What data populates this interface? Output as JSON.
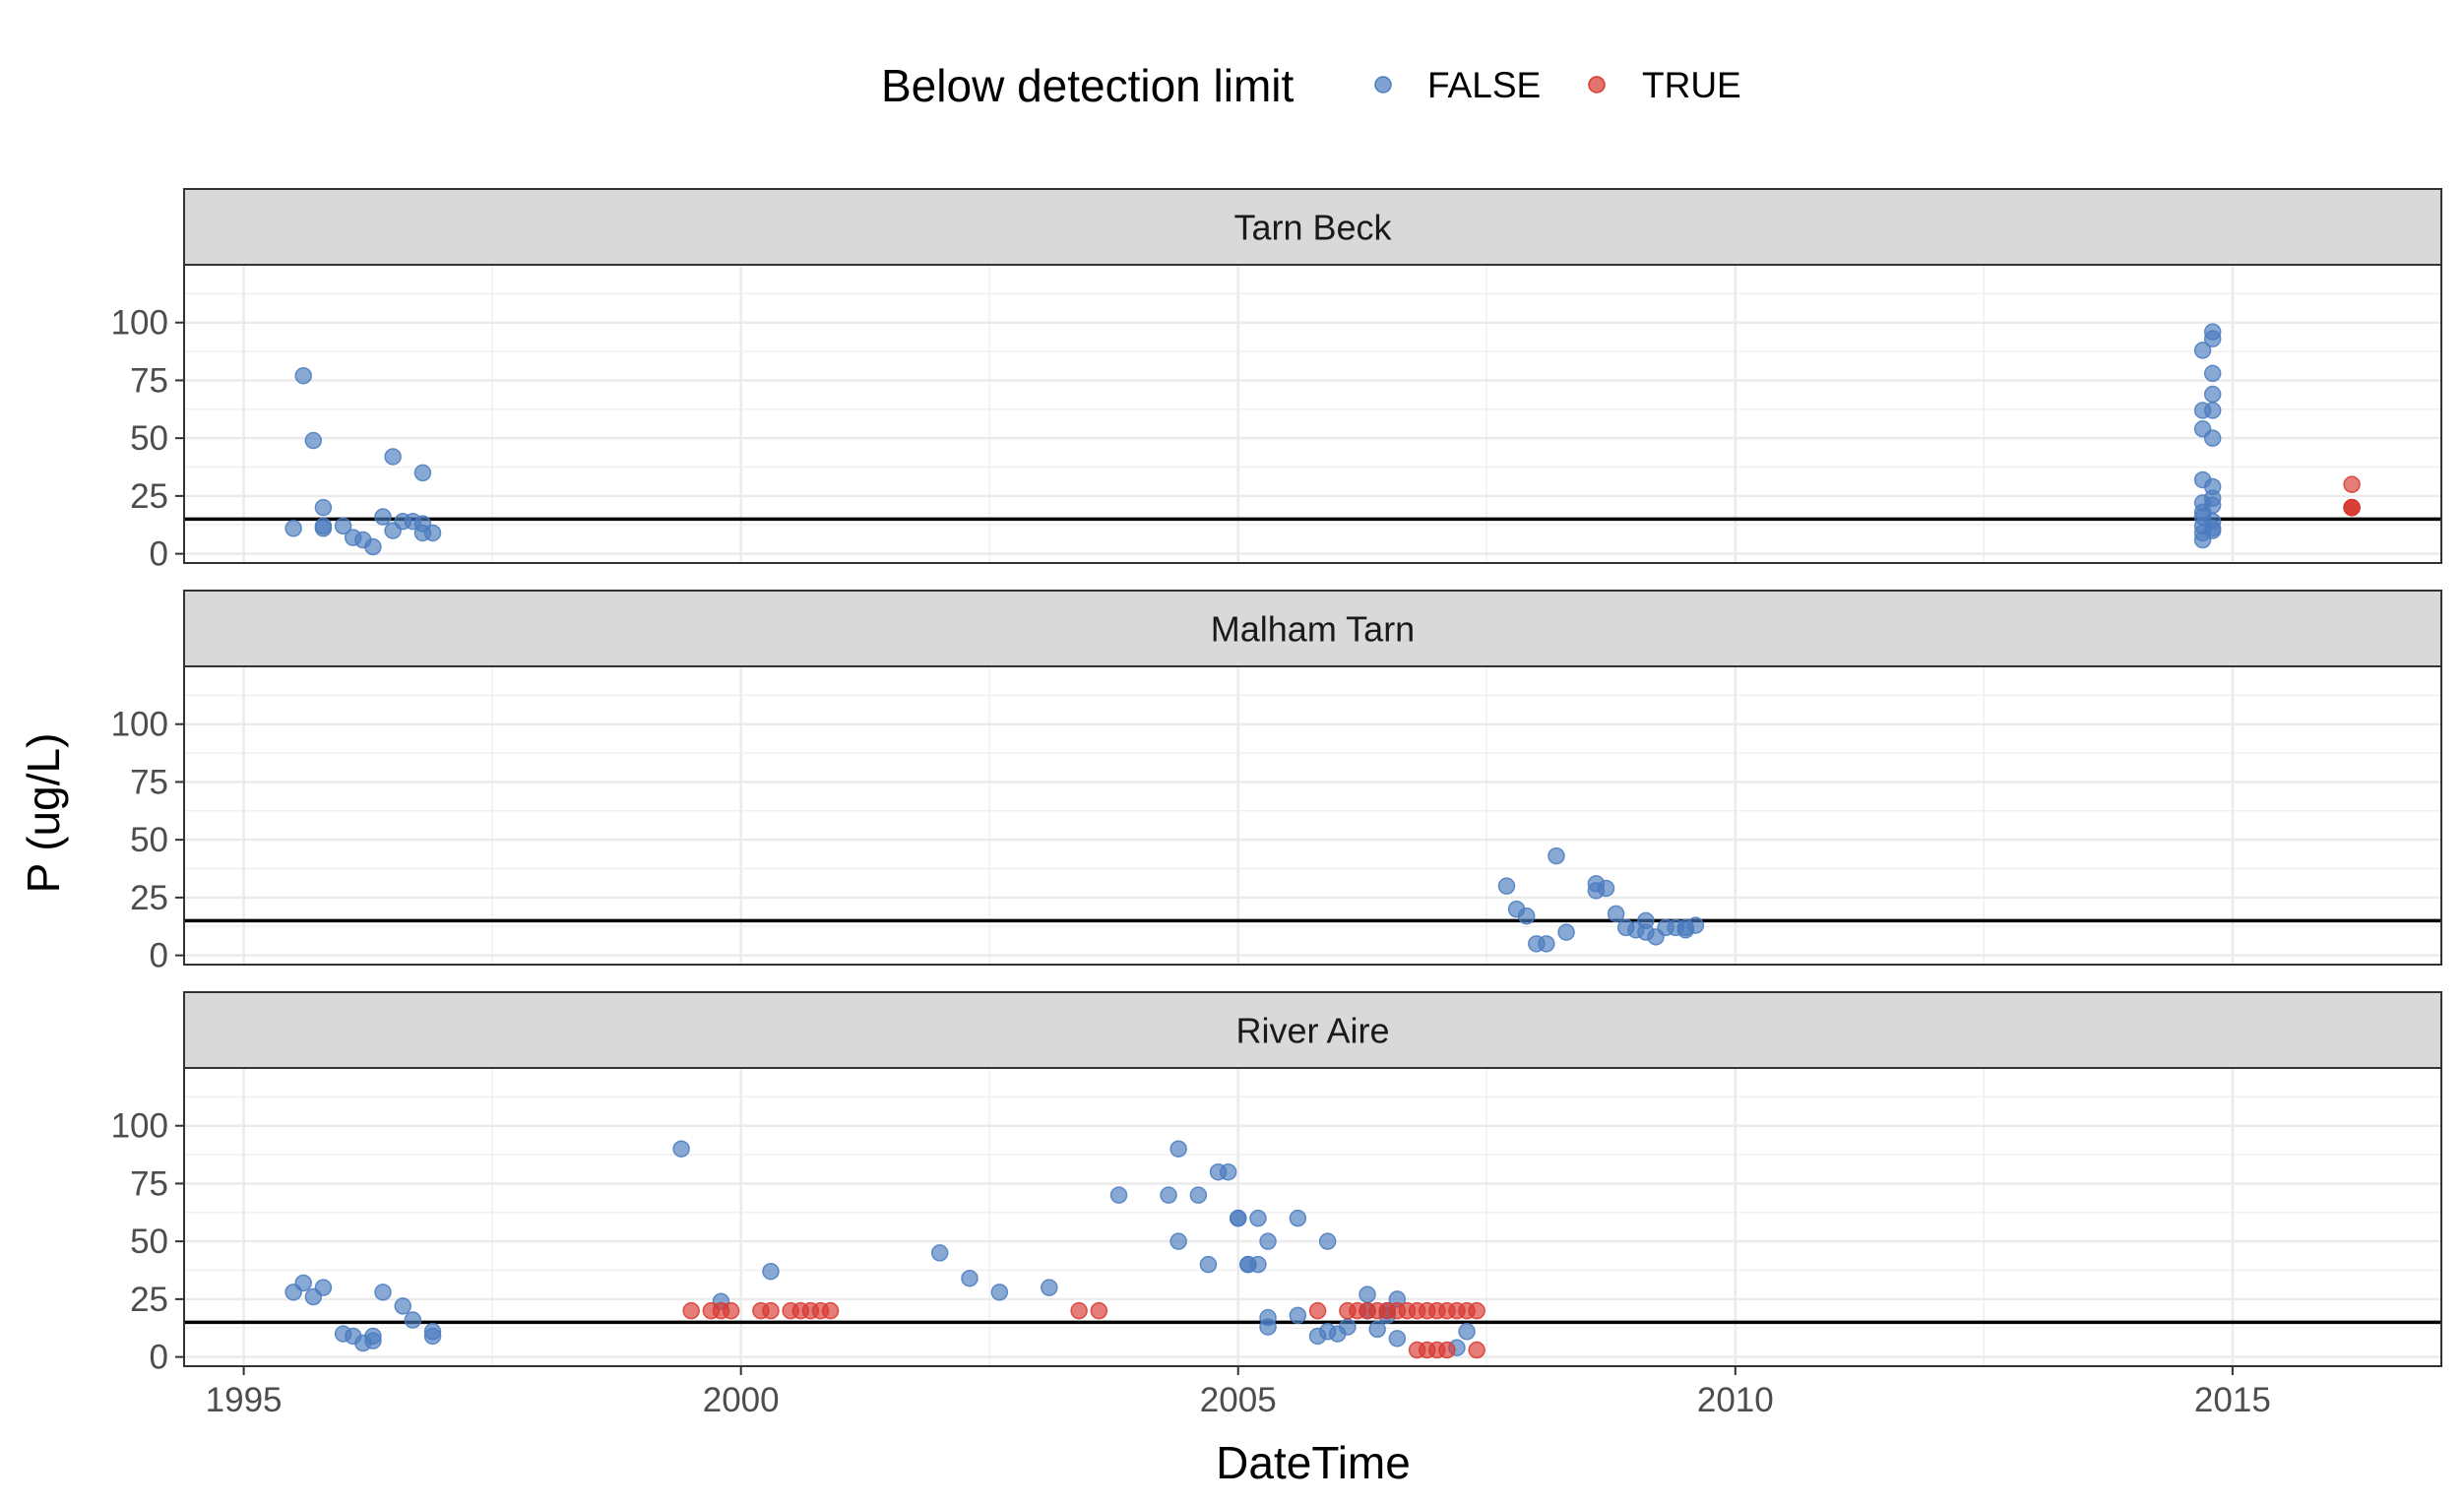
{
  "chart_data": {
    "type": "scatter",
    "xlabel": "DateTime",
    "ylabel": "P (ug/L)",
    "xlim": [
      1994.4,
      2017.1
    ],
    "ylim": [
      -4,
      125
    ],
    "x_ticks": [
      1995,
      2000,
      2005,
      2010,
      2015
    ],
    "x_tick_labels": [
      "1995",
      "2000",
      "2005",
      "2010",
      "2015"
    ],
    "y_ticks": [
      0,
      25,
      50,
      75,
      100
    ],
    "y_tick_labels": [
      "0",
      "25",
      "50",
      "75",
      "100"
    ],
    "grid": true,
    "detection_limit": 15,
    "legend": {
      "title": "Below detection limit",
      "position": "top",
      "entries": [
        {
          "label": "FALSE",
          "color": "#4a7bbf"
        },
        {
          "label": "TRUE",
          "color": "#d7382f"
        }
      ]
    },
    "panels": [
      {
        "name": "Tarn Beck",
        "series": [
          {
            "name": "FALSE",
            "points": [
              [
                1995.5,
                11
              ],
              [
                1995.6,
                77
              ],
              [
                1995.7,
                49
              ],
              [
                1995.8,
                12
              ],
              [
                1995.8,
                11
              ],
              [
                1995.8,
                20
              ],
              [
                1996.0,
                12
              ],
              [
                1996.1,
                7
              ],
              [
                1996.2,
                6
              ],
              [
                1996.3,
                3
              ],
              [
                1996.4,
                16
              ],
              [
                1996.5,
                10
              ],
              [
                1996.5,
                42
              ],
              [
                1996.6,
                14
              ],
              [
                1996.7,
                14
              ],
              [
                1996.8,
                35
              ],
              [
                1996.8,
                13
              ],
              [
                1996.8,
                9
              ],
              [
                1996.9,
                9
              ],
              [
                2014.7,
                88
              ],
              [
                2014.8,
                96
              ],
              [
                2014.8,
                93
              ],
              [
                2014.8,
                78
              ],
              [
                2014.8,
                69
              ],
              [
                2014.7,
                62
              ],
              [
                2014.8,
                62
              ],
              [
                2014.7,
                54
              ],
              [
                2014.8,
                50
              ],
              [
                2014.7,
                32
              ],
              [
                2014.8,
                29
              ],
              [
                2014.8,
                24
              ],
              [
                2014.7,
                22
              ],
              [
                2014.8,
                21
              ],
              [
                2014.7,
                18
              ],
              [
                2014.7,
                16
              ],
              [
                2014.8,
                14
              ],
              [
                2014.7,
                12
              ],
              [
                2014.8,
                11
              ],
              [
                2014.8,
                10
              ],
              [
                2014.7,
                9
              ],
              [
                2014.7,
                6
              ]
            ]
          },
          {
            "name": "TRUE",
            "points": [
              [
                2016.2,
                30
              ],
              [
                2016.2,
                20
              ],
              [
                2016.2,
                20
              ],
              [
                2016.2,
                20
              ]
            ]
          }
        ]
      },
      {
        "name": "Malham Tarn",
        "series": [
          {
            "name": "FALSE",
            "points": [
              [
                2007.7,
                30
              ],
              [
                2007.8,
                20
              ],
              [
                2007.9,
                17
              ],
              [
                2008.0,
                5
              ],
              [
                2008.1,
                5
              ],
              [
                2008.2,
                43
              ],
              [
                2008.3,
                10
              ],
              [
                2008.6,
                31
              ],
              [
                2008.6,
                28
              ],
              [
                2008.7,
                29
              ],
              [
                2008.8,
                18
              ],
              [
                2008.9,
                12
              ],
              [
                2009.0,
                11
              ],
              [
                2009.1,
                10
              ],
              [
                2009.1,
                15
              ],
              [
                2009.2,
                8
              ],
              [
                2009.3,
                12
              ],
              [
                2009.4,
                12
              ],
              [
                2009.5,
                11
              ],
              [
                2009.5,
                12
              ],
              [
                2009.6,
                13
              ]
            ]
          },
          {
            "name": "TRUE",
            "points": []
          }
        ]
      },
      {
        "name": "River Aire",
        "series": [
          {
            "name": "FALSE",
            "points": [
              [
                1995.5,
                28
              ],
              [
                1995.6,
                32
              ],
              [
                1995.7,
                26
              ],
              [
                1995.8,
                30
              ],
              [
                1996.0,
                10
              ],
              [
                1996.1,
                9
              ],
              [
                1996.2,
                6
              ],
              [
                1996.3,
                9
              ],
              [
                1996.3,
                7
              ],
              [
                1996.4,
                28
              ],
              [
                1996.6,
                22
              ],
              [
                1996.7,
                16
              ],
              [
                1996.9,
                11
              ],
              [
                1996.9,
                9
              ],
              [
                1999.4,
                90
              ],
              [
                1999.8,
                24
              ],
              [
                2000.3,
                37
              ],
              [
                2002.0,
                45
              ],
              [
                2002.3,
                34
              ],
              [
                2002.6,
                28
              ],
              [
                2003.1,
                30
              ],
              [
                2003.8,
                70
              ],
              [
                2004.3,
                70
              ],
              [
                2004.4,
                50
              ],
              [
                2004.4,
                90
              ],
              [
                2004.6,
                70
              ],
              [
                2004.7,
                40
              ],
              [
                2004.8,
                80
              ],
              [
                2004.9,
                80
              ],
              [
                2005.0,
                60
              ],
              [
                2005.0,
                60
              ],
              [
                2005.1,
                40
              ],
              [
                2005.1,
                40
              ],
              [
                2005.2,
                60
              ],
              [
                2005.2,
                40
              ],
              [
                2005.3,
                17
              ],
              [
                2005.3,
                13
              ],
              [
                2005.3,
                50
              ],
              [
                2005.6,
                18
              ],
              [
                2005.6,
                60
              ],
              [
                2005.8,
                9
              ],
              [
                2005.9,
                50
              ],
              [
                2005.9,
                11
              ],
              [
                2006.0,
                10
              ],
              [
                2006.1,
                13
              ],
              [
                2006.3,
                27
              ],
              [
                2006.3,
                20
              ],
              [
                2006.4,
                12
              ],
              [
                2006.5,
                20
              ],
              [
                2006.5,
                18
              ],
              [
                2006.6,
                25
              ],
              [
                2006.6,
                8
              ],
              [
                2007.2,
                4
              ],
              [
                2007.3,
                11
              ]
            ]
          },
          {
            "name": "TRUE",
            "points": [
              [
                1999.5,
                20
              ],
              [
                1999.7,
                20
              ],
              [
                1999.8,
                20
              ],
              [
                1999.9,
                20
              ],
              [
                2000.2,
                20
              ],
              [
                2000.3,
                20
              ],
              [
                2000.5,
                20
              ],
              [
                2000.6,
                20
              ],
              [
                2000.7,
                20
              ],
              [
                2000.8,
                20
              ],
              [
                2000.9,
                20
              ],
              [
                2003.4,
                20
              ],
              [
                2003.6,
                20
              ],
              [
                2005.8,
                20
              ],
              [
                2006.1,
                20
              ],
              [
                2006.2,
                20
              ],
              [
                2006.3,
                20
              ],
              [
                2006.4,
                20
              ],
              [
                2006.5,
                20
              ],
              [
                2006.6,
                20
              ],
              [
                2006.7,
                20
              ],
              [
                2006.8,
                20
              ],
              [
                2006.9,
                20
              ],
              [
                2007.0,
                20
              ],
              [
                2007.1,
                20
              ],
              [
                2007.2,
                20
              ],
              [
                2007.3,
                20
              ],
              [
                2007.4,
                20
              ],
              [
                2006.8,
                3
              ],
              [
                2006.9,
                3
              ],
              [
                2007.0,
                3
              ],
              [
                2007.1,
                3
              ],
              [
                2007.4,
                3
              ]
            ]
          }
        ]
      }
    ]
  }
}
